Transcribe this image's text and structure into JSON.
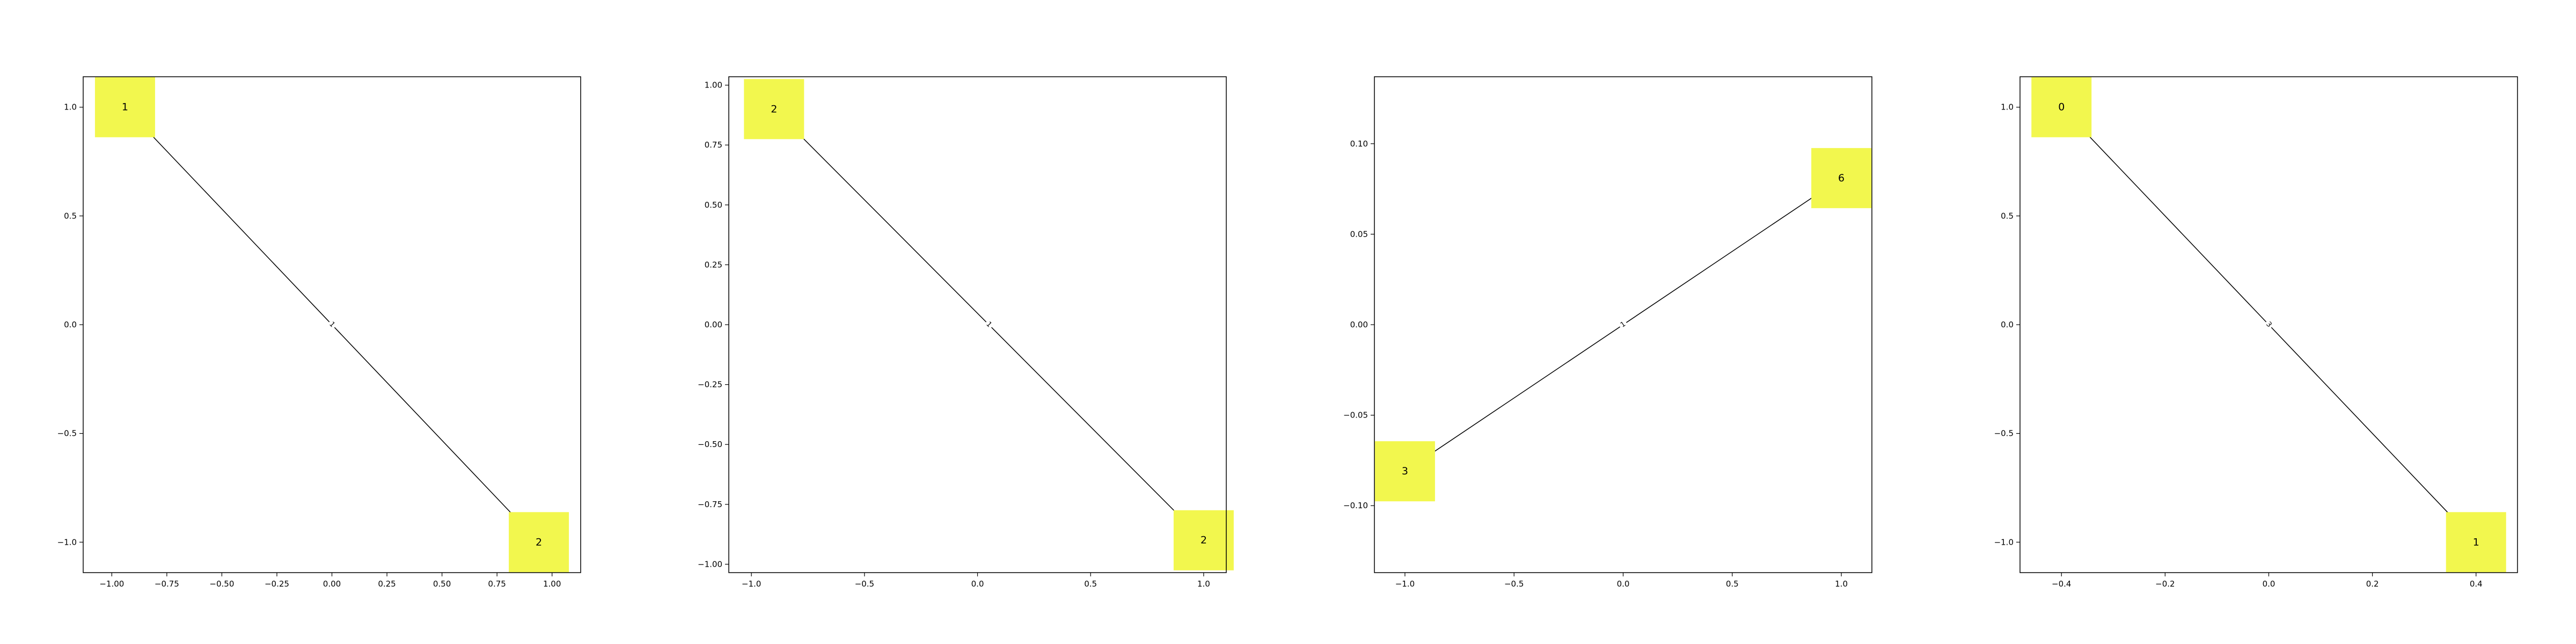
{
  "colors": {
    "node_fill": "#f2f74e",
    "edge": "#000000",
    "axes": "#000000",
    "background": "#ffffff"
  },
  "panels": [
    {
      "xlim": [
        -1.13,
        1.13
      ],
      "ylim": [
        -1.14,
        1.14
      ],
      "xticks": [
        -1.0,
        -0.75,
        -0.5,
        -0.25,
        0.0,
        0.25,
        0.5,
        0.75,
        1.0
      ],
      "xtick_labels": [
        "−1.00",
        "−0.75",
        "−0.50",
        "−0.25",
        "0.00",
        "0.25",
        "0.50",
        "0.75",
        "1.00"
      ],
      "yticks": [
        -1.0,
        -0.5,
        0.0,
        0.5,
        1.0
      ],
      "ytick_labels": [
        "−1.0",
        "−0.5",
        "0.0",
        "0.5",
        "1.0"
      ],
      "nodes": [
        {
          "label": "1",
          "x": -0.94,
          "y": 1.0
        },
        {
          "label": "2",
          "x": 0.94,
          "y": -1.0
        }
      ],
      "edges": [
        {
          "from": 0,
          "to": 1,
          "label": "1"
        }
      ]
    },
    {
      "xlim": [
        -1.1,
        1.1
      ],
      "ylim": [
        -1.035,
        1.035
      ],
      "xticks": [
        -1.0,
        -0.5,
        0.0,
        0.5,
        1.0
      ],
      "xtick_labels": [
        "−1.0",
        "−0.5",
        "0.0",
        "0.5",
        "1.0"
      ],
      "yticks": [
        -1.0,
        -0.75,
        -0.5,
        -0.25,
        0.0,
        0.25,
        0.5,
        0.75,
        1.0
      ],
      "ytick_labels": [
        "−1.00",
        "−0.75",
        "−0.50",
        "−0.25",
        "0.00",
        "0.25",
        "0.50",
        "0.75",
        "1.00"
      ],
      "nodes": [
        {
          "label": "2",
          "x": -0.9,
          "y": 0.9
        },
        {
          "label": "2",
          "x": 1.0,
          "y": -0.9
        }
      ],
      "edges": [
        {
          "from": 0,
          "to": 1,
          "label": "1"
        }
      ]
    },
    {
      "xlim": [
        -1.14,
        1.14
      ],
      "ylim": [
        -0.137,
        0.137
      ],
      "xticks": [
        -1.0,
        -0.5,
        0.0,
        0.5,
        1.0
      ],
      "xtick_labels": [
        "−1.0",
        "−0.5",
        "0.0",
        "0.5",
        "1.0"
      ],
      "yticks": [
        -0.1,
        -0.05,
        0.0,
        0.05,
        0.1
      ],
      "ytick_labels": [
        "−0.10",
        "−0.05",
        "0.00",
        "0.05",
        "0.10"
      ],
      "nodes": [
        {
          "label": "3",
          "x": -1.0,
          "y": -0.081
        },
        {
          "label": "6",
          "x": 1.0,
          "y": 0.081
        }
      ],
      "edges": [
        {
          "from": 0,
          "to": 1,
          "label": "1"
        }
      ]
    },
    {
      "xlim": [
        -0.48,
        0.48
      ],
      "ylim": [
        -1.14,
        1.14
      ],
      "xticks": [
        -0.4,
        -0.2,
        0.0,
        0.2,
        0.4
      ],
      "xtick_labels": [
        "−0.4",
        "−0.2",
        "0.0",
        "0.2",
        "0.4"
      ],
      "yticks": [
        -1.0,
        -0.5,
        0.0,
        0.5,
        1.0
      ],
      "ytick_labels": [
        "−1.0",
        "−0.5",
        "0.0",
        "0.5",
        "1.0"
      ],
      "nodes": [
        {
          "label": "0",
          "x": -0.4,
          "y": 1.0
        },
        {
          "label": "1",
          "x": 0.4,
          "y": -1.0
        }
      ],
      "edges": [
        {
          "from": 0,
          "to": 1,
          "label": "3"
        }
      ]
    }
  ]
}
